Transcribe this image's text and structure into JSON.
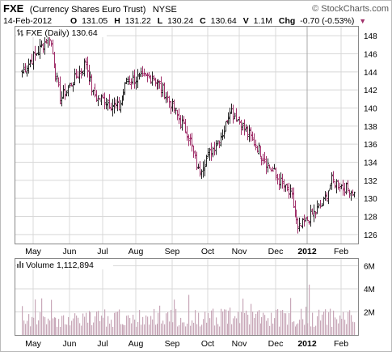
{
  "header": {
    "symbol": "FXE",
    "name": "(Currency Shares Euro Trust)",
    "exchange": "NYSE",
    "date": "14-Feb-2012",
    "watermark": "© StockCharts.com",
    "o_label": "O",
    "o_value": "131.05",
    "h_label": "H",
    "h_value": "131.22",
    "l_label": "L",
    "l_value": "130.24",
    "c_label": "C",
    "c_value": "130.64",
    "v_label": "V",
    "v_value": "1.1M",
    "chg_label": "Chg",
    "chg_value": "-0.70 (-0.53%)",
    "chg_arrow": "▼"
  },
  "colors": {
    "up": "#222222",
    "down": "#a0306a",
    "volume": "#c8a7b8",
    "grid": "#d8d8d8",
    "border": "#888888",
    "down_text": "#a0306a"
  },
  "chart_data": {
    "type": "ohlc",
    "price_panel": {
      "legend": "FXE (Daily) 130.64",
      "ylim": [
        125,
        149
      ],
      "y_ticks": [
        126,
        128,
        130,
        132,
        134,
        136,
        138,
        140,
        142,
        144,
        146,
        148
      ],
      "y_tick_labels": [
        "126",
        "128",
        "130",
        "132",
        "134",
        "136",
        "138",
        "140",
        "142",
        "144",
        "146",
        "148"
      ],
      "grid": true,
      "markers": [
        {
          "month": "May",
          "close": 144
        },
        {
          "month": "May",
          "close": 148
        },
        {
          "month": "Jun",
          "close": 141
        },
        {
          "month": "Jun",
          "close": 145
        },
        {
          "month": "Jul",
          "close": 141.5
        },
        {
          "month": "Jul",
          "close": 140
        },
        {
          "month": "Aug",
          "close": 143
        },
        {
          "month": "Aug",
          "close": 143.5
        },
        {
          "month": "Sep",
          "close": 142
        },
        {
          "month": "Sep",
          "close": 137
        },
        {
          "month": "Oct",
          "close": 133
        },
        {
          "month": "Oct",
          "close": 137.5
        },
        {
          "month": "Nov",
          "close": 140
        },
        {
          "month": "Nov",
          "close": 136
        },
        {
          "month": "Dec",
          "close": 134
        },
        {
          "month": "Dec",
          "close": 130
        },
        {
          "month": "2012",
          "close": 126.5
        },
        {
          "month": "2012",
          "close": 129.5
        },
        {
          "month": "Feb",
          "close": 132
        },
        {
          "month": "Feb",
          "close": 130.64
        }
      ]
    },
    "volume_panel": {
      "legend": "Volume 1,112,894",
      "ylim": [
        0,
        6.6
      ],
      "y_ticks": [
        2,
        4,
        6
      ],
      "y_tick_labels": [
        "2M",
        "4M",
        "6M"
      ],
      "unit": "millions of shares",
      "grid": true
    },
    "x_axis": {
      "tick_labels": [
        "May",
        "Jun",
        "Jul",
        "Aug",
        "Sep",
        "Oct",
        "Nov",
        "Dec",
        "2012",
        "Feb"
      ],
      "bold_labels": [
        "2012"
      ]
    }
  }
}
